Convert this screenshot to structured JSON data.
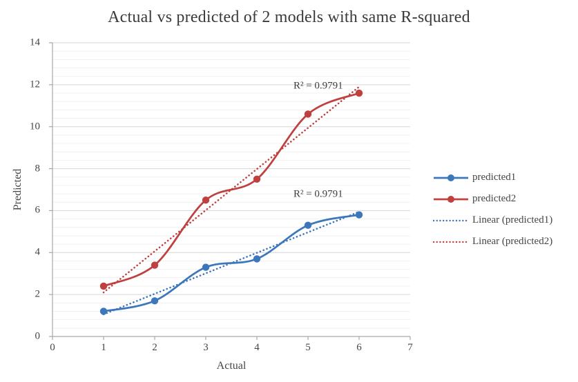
{
  "chart_data": {
    "type": "line",
    "title": "Actual vs predicted of 2 models with same R-squared",
    "xlabel": "Actual",
    "ylabel": "Predicted",
    "x": [
      1,
      2,
      3,
      4,
      5,
      6
    ],
    "series": [
      {
        "name": "predicted1",
        "values": [
          1.2,
          1.7,
          3.3,
          3.7,
          5.3,
          5.8
        ],
        "color": "#3c76bb",
        "smooth": true,
        "markers": true
      },
      {
        "name": "predicted2",
        "values": [
          2.4,
          3.4,
          6.5,
          7.5,
          10.6,
          11.6
        ],
        "color": "#bf403e",
        "smooth": true,
        "markers": true
      }
    ],
    "trendlines": [
      {
        "name": "Linear (predicted1)",
        "series": 0,
        "color": "#3c76bb",
        "style": "dotted"
      },
      {
        "name": "Linear (predicted2)",
        "series": 1,
        "color": "#bf403e",
        "style": "dotted"
      }
    ],
    "annotations": [
      {
        "text": "R² = 0.9791",
        "x": 5.2,
        "y": 11.92,
        "refers_to": "predicted2"
      },
      {
        "text": "R² = 0.9791",
        "x": 5.2,
        "y": 6.78,
        "refers_to": "predicted1"
      }
    ],
    "xlim": [
      0,
      7
    ],
    "ylim": [
      0,
      14
    ],
    "xticks": [
      0,
      1,
      2,
      3,
      4,
      5,
      6,
      7
    ],
    "yticks": [
      0,
      2,
      4,
      6,
      8,
      10,
      12,
      14
    ],
    "y_minor_step": 0.4,
    "grid": "horizontal-major-and-minor",
    "legend_position": "right",
    "legend_entries": [
      "predicted1",
      "predicted2",
      "Linear (predicted1)",
      "Linear (predicted2)"
    ]
  },
  "colors": {
    "background": "#ffffff",
    "text": "#3f3f3f",
    "axis": "#a6a6a6",
    "grid_major": "#d6d6d6",
    "grid_minor": "#f1f1f1"
  }
}
